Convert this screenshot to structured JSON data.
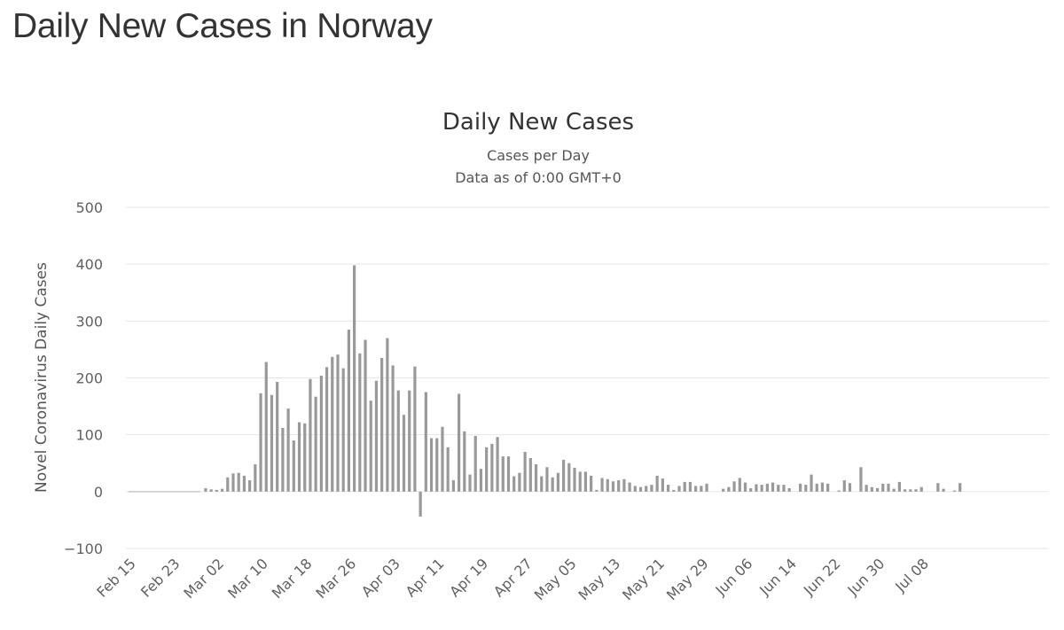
{
  "page_title": "Daily New Cases in Norway",
  "chart_data": {
    "type": "bar",
    "title": "Daily New Cases",
    "subtitle": "Cases per Day",
    "subtitle2": "Data as of 0:00 GMT+0",
    "xlabel": "",
    "ylabel": "Novel Coronavirus Daily Cases",
    "ylim": [
      -100,
      500
    ],
    "yticks": [
      500,
      400,
      300,
      200,
      100,
      0,
      -100
    ],
    "ytick_labels": [
      "500",
      "400",
      "300",
      "200",
      "100",
      "0",
      "−100"
    ],
    "x_start": "Feb 15",
    "xtick_labels": [
      "Feb 15",
      "Feb 23",
      "Mar 02",
      "Mar 10",
      "Mar 18",
      "Mar 26",
      "Apr 03",
      "Apr 11",
      "Apr 19",
      "Apr 27",
      "May 05",
      "May 13",
      "May 21",
      "May 29",
      "Jun 06",
      "Jun 14",
      "Jun 22",
      "Jun 30",
      "Jul 08"
    ],
    "xtick_every_days": 8,
    "bar_color": "#999999",
    "values": [
      0,
      0,
      0,
      0,
      0,
      0,
      0,
      0,
      0,
      0,
      0,
      0,
      0,
      0,
      6,
      4,
      3,
      5,
      25,
      32,
      33,
      28,
      20,
      48,
      173,
      228,
      170,
      193,
      112,
      146,
      90,
      122,
      120,
      198,
      167,
      204,
      219,
      237,
      241,
      217,
      285,
      398,
      243,
      267,
      160,
      195,
      235,
      270,
      222,
      178,
      135,
      178,
      220,
      -44,
      175,
      94,
      94,
      114,
      78,
      20,
      172,
      106,
      30,
      98,
      40,
      78,
      84,
      96,
      62,
      62,
      27,
      33,
      70,
      59,
      48,
      27,
      43,
      25,
      33,
      56,
      50,
      42,
      35,
      35,
      28,
      3,
      24,
      22,
      18,
      20,
      22,
      16,
      10,
      8,
      10,
      12,
      28,
      23,
      12,
      3,
      10,
      17,
      17,
      10,
      10,
      14,
      0,
      0,
      5,
      8,
      18,
      24,
      16,
      6,
      13,
      12,
      14,
      16,
      12,
      12,
      6,
      0,
      14,
      12,
      30,
      14,
      16,
      14,
      0,
      2,
      20,
      15,
      0,
      43,
      12,
      8,
      6,
      14,
      14,
      5,
      17,
      4,
      4,
      4,
      8,
      0,
      0,
      15,
      5,
      0,
      2,
      15
    ]
  }
}
